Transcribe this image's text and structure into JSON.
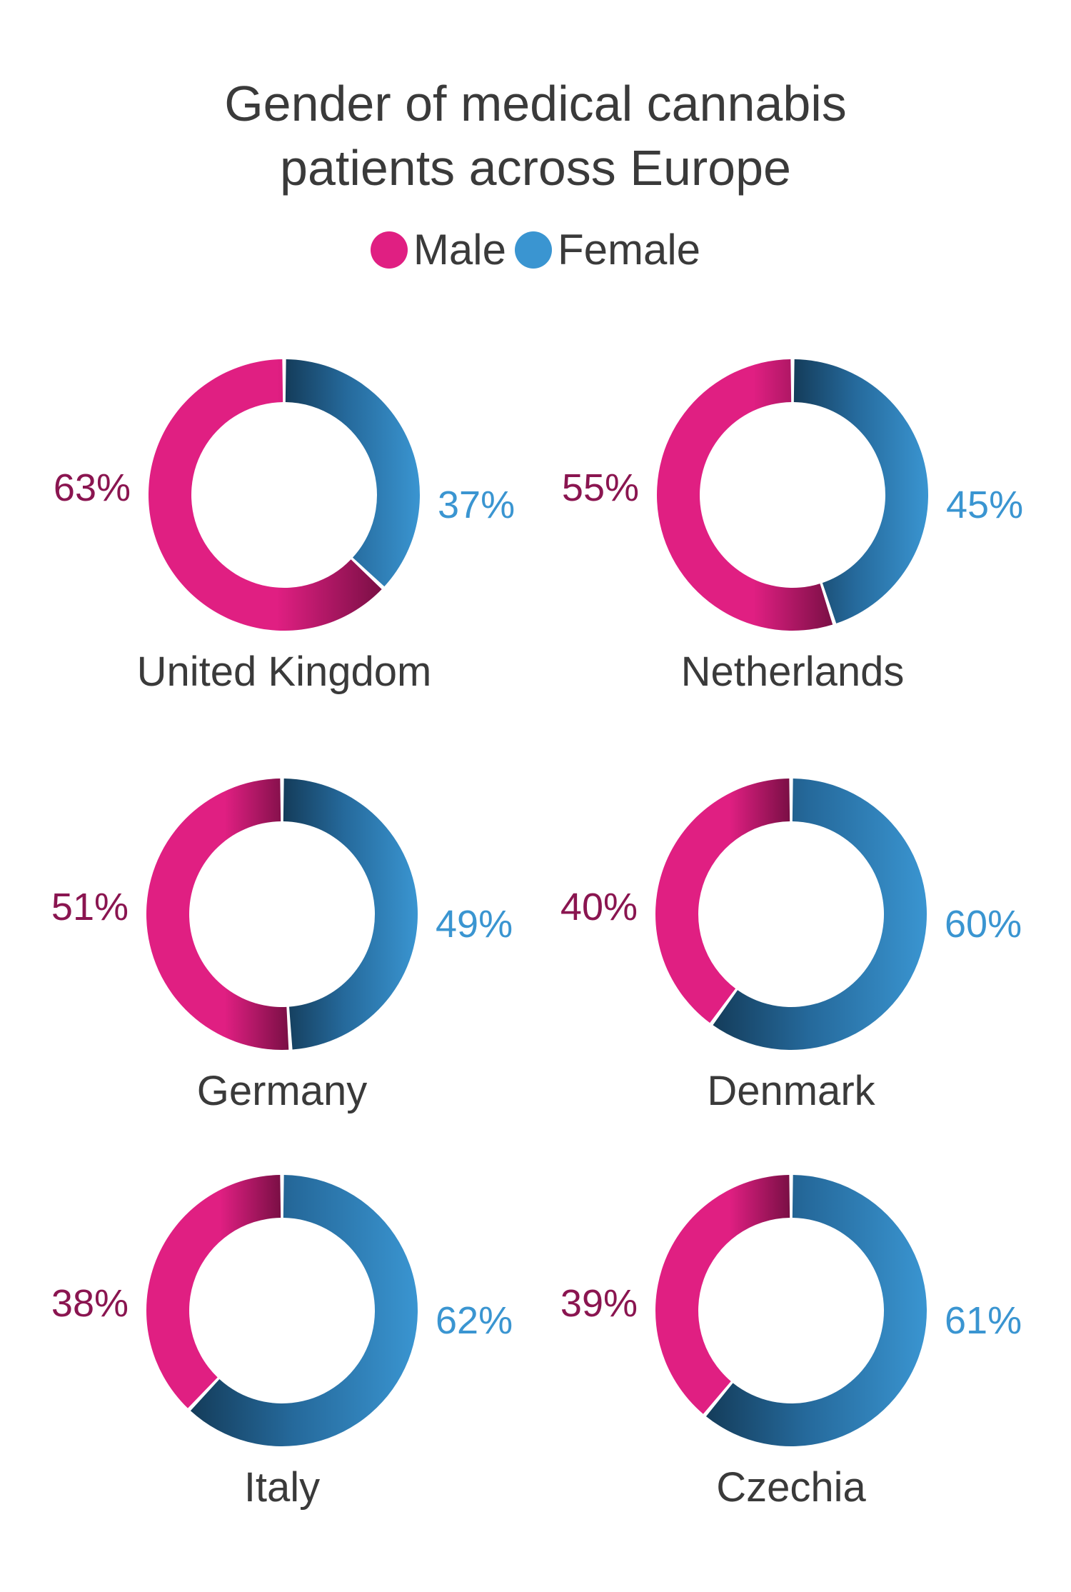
{
  "title_lines": [
    "Gender of medical cannabis",
    "patients across Europe"
  ],
  "legend": [
    {
      "label": "Male",
      "color": "#e01f82"
    },
    {
      "label": "Female",
      "color": "#3a95d1"
    }
  ],
  "colors": {
    "male": "#e01f82",
    "male_dark": "#7a0f45",
    "female": "#3a95d1",
    "female_dark": "#143c5a",
    "male_label": "#8a1550",
    "female_label": "#3a95d1",
    "country_label": "#3a3a3a"
  },
  "chart_data": [
    {
      "type": "pie",
      "donut": true,
      "title": "United Kingdom",
      "labels": [
        "Male",
        "Female"
      ],
      "values": [
        63,
        37
      ],
      "value_labels": [
        "63%",
        "37%"
      ]
    },
    {
      "type": "pie",
      "donut": true,
      "title": "Netherlands",
      "labels": [
        "Male",
        "Female"
      ],
      "values": [
        55,
        45
      ],
      "value_labels": [
        "55%",
        "45%"
      ]
    },
    {
      "type": "pie",
      "donut": true,
      "title": "Germany",
      "labels": [
        "Male",
        "Female"
      ],
      "values": [
        51,
        49
      ],
      "value_labels": [
        "51%",
        "49%"
      ]
    },
    {
      "type": "pie",
      "donut": true,
      "title": "Denmark",
      "labels": [
        "Male",
        "Female"
      ],
      "values": [
        40,
        60
      ],
      "value_labels": [
        "40%",
        "60%"
      ]
    },
    {
      "type": "pie",
      "donut": true,
      "title": "Italy",
      "labels": [
        "Male",
        "Female"
      ],
      "values": [
        38,
        62
      ],
      "value_labels": [
        "38%",
        "62%"
      ]
    },
    {
      "type": "pie",
      "donut": true,
      "title": "Czechia",
      "labels": [
        "Male",
        "Female"
      ],
      "values": [
        39,
        61
      ],
      "value_labels": [
        "39%",
        "61%"
      ]
    }
  ]
}
